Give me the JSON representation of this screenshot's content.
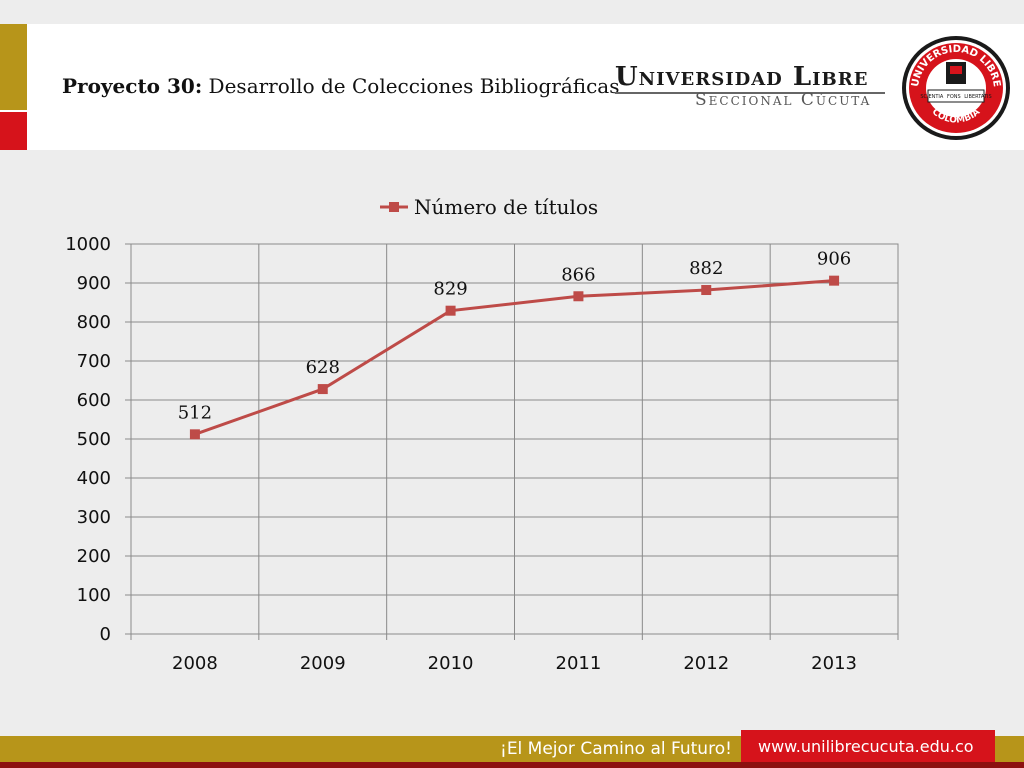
{
  "header": {
    "title_bold": "Proyecto 30:",
    "title_rest": " Desarrollo de Colecciones Bibliográficas",
    "brand_name": "Universidad Libre",
    "brand_sub": "Seccional Cúcuta",
    "seal_text_top": "UNIVERSIDAD LIBRE",
    "seal_text_bottom": "COLOMBIA",
    "seal_ribbon_left": "SCIENTIA",
    "seal_ribbon_mid": "FONS",
    "seal_ribbon_right": "LIBERTATIS"
  },
  "footer": {
    "slogan": "¡El Mejor Camino al Futuro!",
    "url": "www.unilibrecucuta.edu.co"
  },
  "colors": {
    "gold": "#b7951a",
    "red": "#d6131b",
    "series": "#be4b48"
  },
  "chart_data": {
    "type": "line",
    "categories": [
      "2008",
      "2009",
      "2010",
      "2011",
      "2012",
      "2013"
    ],
    "series": [
      {
        "name": "Número de títulos",
        "values": [
          512,
          628,
          829,
          866,
          882,
          906
        ]
      }
    ],
    "ylim": [
      0,
      1000
    ],
    "yticks": [
      0,
      100,
      200,
      300,
      400,
      500,
      600,
      700,
      800,
      900,
      1000
    ],
    "grid": true,
    "legend": "top",
    "data_labels": true
  }
}
